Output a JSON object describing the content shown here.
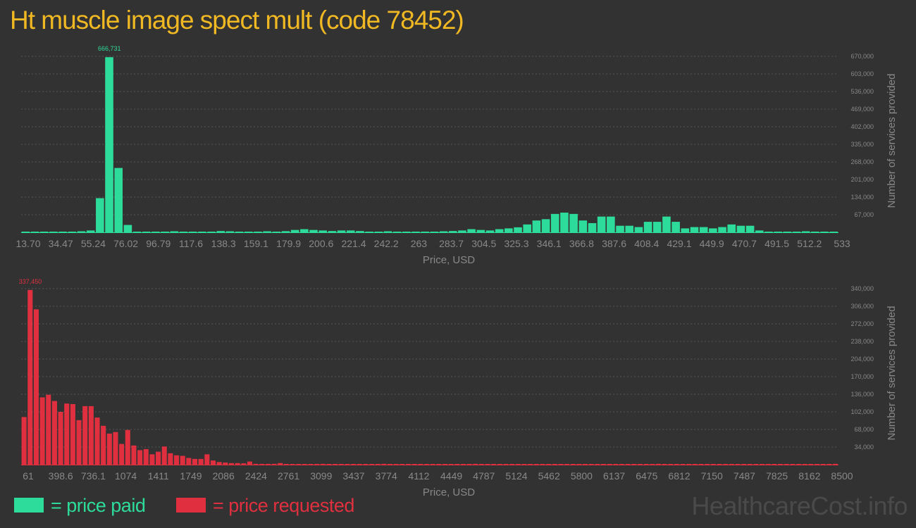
{
  "title": "Ht muscle image spect mult (code 78452)",
  "colors": {
    "paid": "#2ddc9a",
    "requested": "#e0303f",
    "title": "#f0b823",
    "axis": "#888888",
    "grid": "#555555"
  },
  "legend": {
    "paid": "= price paid",
    "requested": "= price requested"
  },
  "watermark": "HealthcareCost.info",
  "chart_data": [
    {
      "type": "bar",
      "name": "price-paid",
      "xlabel": "Price, USD",
      "ylabel": "Number of services provided",
      "xticks": [
        "13.70",
        "34.47",
        "55.24",
        "76.02",
        "96.79",
        "117.6",
        "138.3",
        "159.1",
        "179.9",
        "200.6",
        "221.4",
        "242.2",
        "263",
        "283.7",
        "304.5",
        "325.3",
        "346.1",
        "366.8",
        "387.6",
        "408.4",
        "429.1",
        "449.9",
        "470.7",
        "491.5",
        "512.2",
        "533"
      ],
      "yticks": [
        "67,000",
        "134,000",
        "201,000",
        "268,000",
        "335,000",
        "402,000",
        "469,000",
        "536,000",
        "603,000",
        "670,000"
      ],
      "ylim": [
        0,
        670000
      ],
      "peak_label": "666,731",
      "values": [
        1500,
        1500,
        400,
        400,
        2500,
        2500,
        4000,
        7000,
        130000,
        666731,
        245000,
        28000,
        2500,
        2500,
        1500,
        1500,
        4000,
        2500,
        1500,
        1500,
        2500,
        5000,
        4000,
        2500,
        1500,
        2500,
        4000,
        2500,
        4500,
        9000,
        12000,
        9000,
        7000,
        5000,
        7000,
        7000,
        5000,
        2500,
        2500,
        4000,
        2500,
        1500,
        2500,
        1500,
        2500,
        4000,
        5000,
        7000,
        12000,
        9000,
        7000,
        12000,
        15000,
        19000,
        30000,
        45000,
        50000,
        70000,
        75000,
        70000,
        45000,
        35000,
        60000,
        60000,
        25000,
        25000,
        20000,
        40000,
        40000,
        60000,
        40000,
        15000,
        20000,
        20000,
        15000,
        20000,
        30000,
        25000,
        25000,
        7000,
        2500,
        2500,
        1500,
        1500,
        4000,
        1500,
        1500,
        1500
      ]
    },
    {
      "type": "bar",
      "name": "price-requested",
      "xlabel": "Price, USD",
      "ylabel": "Number of services provided",
      "xticks": [
        "61",
        "398.6",
        "736.1",
        "1074",
        "1411",
        "1749",
        "2086",
        "2424",
        "2761",
        "3099",
        "3437",
        "3774",
        "4112",
        "4449",
        "4787",
        "5124",
        "5462",
        "5800",
        "6137",
        "6475",
        "6812",
        "7150",
        "7487",
        "7825",
        "8162",
        "8500"
      ],
      "yticks": [
        "34,000",
        "68,000",
        "102,000",
        "136,000",
        "170,000",
        "204,000",
        "238,000",
        "272,000",
        "306,000",
        "340,000"
      ],
      "ylim": [
        0,
        340000
      ],
      "peak_label": "337,450",
      "values": [
        92000,
        337450,
        300000,
        130000,
        135000,
        123000,
        102000,
        118000,
        117000,
        86000,
        113000,
        113000,
        91000,
        75000,
        60000,
        63000,
        40000,
        67000,
        37000,
        28000,
        30000,
        20000,
        25000,
        35000,
        22000,
        18000,
        17000,
        13000,
        11000,
        11000,
        20000,
        8000,
        5000,
        4000,
        3000,
        3000,
        2500,
        6000,
        1500,
        1500,
        1500,
        1500,
        3000,
        800,
        800,
        800,
        800,
        800,
        800,
        1500,
        800,
        800,
        800,
        800,
        800,
        800,
        800,
        800,
        800,
        1500,
        800,
        800,
        800,
        800,
        800,
        800,
        800,
        800,
        800,
        800,
        800,
        800,
        800,
        800,
        1500,
        800,
        800,
        800,
        800,
        800,
        800,
        800,
        800,
        800,
        800,
        800,
        800,
        800,
        800,
        800,
        800,
        800,
        800,
        800,
        800,
        800,
        800,
        800,
        800,
        800,
        800,
        800,
        800,
        800,
        1500,
        800,
        800,
        800,
        800,
        800,
        800,
        800,
        800,
        800,
        800,
        800,
        800,
        800,
        800,
        800,
        800,
        800,
        800,
        800,
        800,
        800,
        800,
        800,
        800,
        800,
        800,
        800,
        800,
        1500
      ]
    }
  ]
}
